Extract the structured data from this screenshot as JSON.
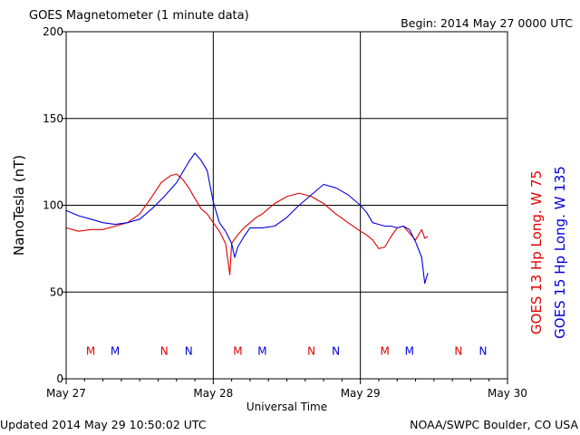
{
  "header": {
    "title": "GOES Magnetometer (1 minute data)",
    "begin": "Begin:  2014 May 27 0000 UTC"
  },
  "footer": {
    "updated": "Updated 2014 May 29 10:50:02 UTC",
    "credit": "NOAA/SWPC Boulder, CO USA"
  },
  "chart_data": {
    "type": "line",
    "title": "GOES Magnetometer (1 minute data)",
    "xlabel": "Universal Time",
    "ylabel": "NanoTesla (nT)",
    "x_unit": "hours since 2014 May 27 0000 UTC",
    "xlim": [
      0,
      72
    ],
    "ylim": [
      0,
      200
    ],
    "yticks": [
      0,
      50,
      100,
      150,
      200
    ],
    "xticks": [
      {
        "x": 0,
        "label": "May 27"
      },
      {
        "x": 24,
        "label": "May 28"
      },
      {
        "x": 48,
        "label": "May 29"
      },
      {
        "x": 72,
        "label": "May 30"
      }
    ],
    "grid": true,
    "legend": "right-vertical",
    "series": [
      {
        "name": "GOES 13 Hp  Long. W 75",
        "color": "#e00000",
        "x": [
          0,
          2,
          4,
          6,
          8,
          10,
          12,
          14,
          15.5,
          17,
          18,
          19,
          20,
          21,
          22,
          23,
          24,
          25,
          26,
          26.7,
          27,
          28,
          29,
          30,
          31,
          32,
          34,
          36,
          38,
          40,
          42,
          44,
          46,
          48,
          49,
          50,
          51,
          52,
          53,
          54,
          55,
          56,
          57,
          58,
          58.5,
          59
        ],
        "y": [
          87,
          85,
          86,
          86,
          88,
          90,
          95,
          105,
          113,
          117,
          118,
          115,
          110,
          104,
          98,
          95,
          90,
          85,
          78,
          60,
          78,
          83,
          87,
          90,
          93,
          95,
          101,
          105,
          107,
          105,
          101,
          95,
          90,
          85,
          83,
          80,
          75,
          76,
          82,
          87,
          88,
          84,
          80,
          86,
          81,
          82
        ]
      },
      {
        "name": "GOES 15 Hp  Long. W 135",
        "color": "#0000dd",
        "x": [
          0,
          2,
          4,
          6,
          8,
          10,
          12,
          14,
          16,
          18,
          19,
          20,
          21,
          22,
          23,
          24,
          25,
          26,
          27,
          27.5,
          28,
          29,
          30,
          32,
          34,
          36,
          38,
          40,
          42,
          44,
          46,
          48,
          49,
          50,
          51,
          52,
          53,
          54,
          55,
          56,
          57,
          58,
          58.5,
          59
        ],
        "y": [
          97,
          94,
          92,
          90,
          89,
          90,
          92,
          98,
          105,
          113,
          119,
          125,
          130,
          126,
          120,
          102,
          90,
          85,
          78,
          70,
          76,
          82,
          87,
          87,
          88,
          93,
          100,
          106,
          112,
          110,
          106,
          100,
          96,
          90,
          89,
          88,
          88,
          87,
          88,
          86,
          79,
          70,
          55,
          61
        ]
      }
    ],
    "markers": [
      {
        "x": 4,
        "label": "M",
        "color": "#e00000"
      },
      {
        "x": 8,
        "label": "M",
        "color": "#0000dd"
      },
      {
        "x": 16,
        "label": "N",
        "color": "#e00000"
      },
      {
        "x": 20,
        "label": "N",
        "color": "#0000dd"
      },
      {
        "x": 28,
        "label": "M",
        "color": "#e00000"
      },
      {
        "x": 32,
        "label": "M",
        "color": "#0000dd"
      },
      {
        "x": 40,
        "label": "N",
        "color": "#e00000"
      },
      {
        "x": 44,
        "label": "N",
        "color": "#0000dd"
      },
      {
        "x": 52,
        "label": "M",
        "color": "#e00000"
      },
      {
        "x": 56,
        "label": "M",
        "color": "#0000dd"
      },
      {
        "x": 64,
        "label": "N",
        "color": "#e00000"
      },
      {
        "x": 68,
        "label": "N",
        "color": "#0000dd"
      }
    ],
    "marker_y": 16
  }
}
